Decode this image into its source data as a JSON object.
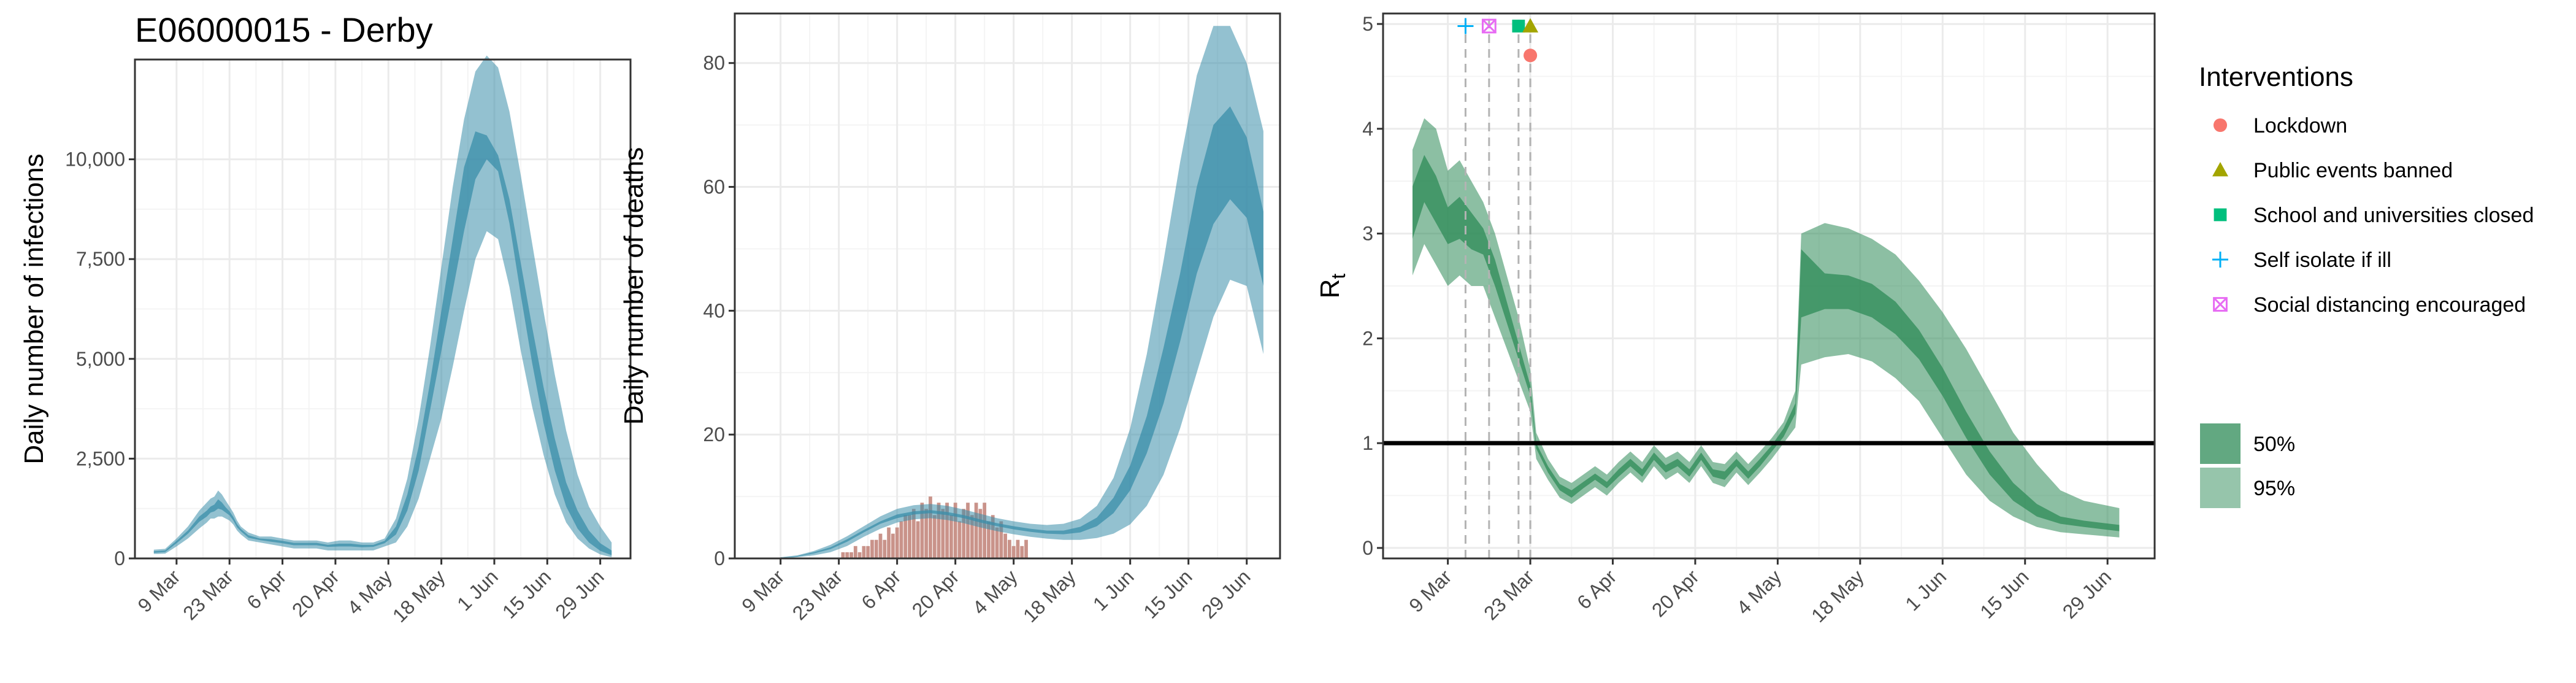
{
  "figure_title": "E06000015 - Derby",
  "colors": {
    "infection_band": "#3a8eaa",
    "death_band": "#3a8eaa",
    "rt_band": "#2e8b57",
    "observed_deaths": "#c9938a",
    "grid_major": "#ebebeb",
    "grid_minor": "#f4f4f4",
    "panel_border": "#333333",
    "lockdown": "#f8766d",
    "public_events": "#a3a500",
    "schools": "#00bf7d",
    "self_isolate": "#00b0f6",
    "social_distancing": "#e76bf3"
  },
  "date_ticks": [
    "9 Mar",
    "23 Mar",
    "6 Apr",
    "20 Apr",
    "4 May",
    "18 May",
    "1 Jun",
    "15 Jun",
    "29 Jun"
  ],
  "legend": {
    "interventions_title": "Interventions",
    "interventions": [
      {
        "label": "Lockdown",
        "icon": "circle-icon",
        "color": "#f8766d"
      },
      {
        "label": "Public events banned",
        "icon": "triangle-icon",
        "color": "#a3a500"
      },
      {
        "label": "School and universities closed",
        "icon": "square-icon",
        "color": "#00bf7d"
      },
      {
        "label": "Self isolate if ill",
        "icon": "plus-icon",
        "color": "#00b0f6"
      },
      {
        "label": "Social distancing encouraged",
        "icon": "boxed-cross-icon",
        "color": "#e76bf3"
      }
    ],
    "ci_levels": [
      {
        "label": "50%"
      },
      {
        "label": "95%"
      }
    ]
  },
  "chart_data": [
    {
      "type": "area",
      "ylabel": "Daily number of infections",
      "xlabel": "",
      "ylim": [
        0,
        12500
      ],
      "yticks": [
        0,
        2500,
        5000,
        7500,
        10000
      ],
      "ytick_labels": [
        "0",
        "2,500",
        "5,000",
        "7,500",
        "10,000"
      ],
      "xlim": [
        "2020-02-27",
        "2020-07-07"
      ],
      "xticks": [
        "2020-03-09",
        "2020-03-23",
        "2020-04-06",
        "2020-04-20",
        "2020-05-04",
        "2020-05-18",
        "2020-06-01",
        "2020-06-15",
        "2020-06-29"
      ],
      "grid": true,
      "dates": [
        "2020-03-03",
        "2020-03-06",
        "2020-03-09",
        "2020-03-12",
        "2020-03-15",
        "2020-03-17",
        "2020-03-18",
        "2020-03-19",
        "2020-03-20",
        "2020-03-21",
        "2020-03-22",
        "2020-03-23",
        "2020-03-24",
        "2020-03-25",
        "2020-03-26",
        "2020-03-28",
        "2020-03-31",
        "2020-04-03",
        "2020-04-06",
        "2020-04-09",
        "2020-04-12",
        "2020-04-15",
        "2020-04-18",
        "2020-04-21",
        "2020-04-24",
        "2020-04-27",
        "2020-04-30",
        "2020-05-03",
        "2020-05-06",
        "2020-05-09",
        "2020-05-12",
        "2020-05-15",
        "2020-05-18",
        "2020-05-21",
        "2020-05-24",
        "2020-05-27",
        "2020-05-30",
        "2020-06-02",
        "2020-06-05",
        "2020-06-08",
        "2020-06-11",
        "2020-06-14",
        "2020-06-17",
        "2020-06-20",
        "2020-06-23",
        "2020-06-26",
        "2020-06-29",
        "2020-07-02"
      ],
      "bands": [
        {
          "level": "95%",
          "lower": [
            110,
            120,
            300,
            500,
            750,
            900,
            1000,
            1000,
            1050,
            1050,
            1000,
            950,
            850,
            700,
            600,
            450,
            400,
            350,
            300,
            250,
            250,
            250,
            200,
            200,
            200,
            200,
            200,
            300,
            400,
            800,
            1500,
            2500,
            3500,
            4800,
            6200,
            7500,
            8200,
            8000,
            6800,
            5200,
            3800,
            2600,
            1600,
            900,
            500,
            250,
            100,
            30
          ],
          "upper": [
            220,
            240,
            500,
            800,
            1200,
            1400,
            1500,
            1550,
            1700,
            1600,
            1450,
            1300,
            1150,
            950,
            800,
            650,
            550,
            550,
            500,
            450,
            450,
            450,
            400,
            450,
            450,
            400,
            400,
            500,
            1000,
            2000,
            3500,
            5300,
            7300,
            9300,
            11000,
            12200,
            12600,
            12300,
            11200,
            9600,
            7900,
            6200,
            4600,
            3200,
            2100,
            1300,
            800,
            400
          ]
        },
        {
          "level": "50%",
          "lower": [
            140,
            160,
            380,
            620,
            920,
            1050,
            1150,
            1180,
            1250,
            1220,
            1150,
            1080,
            950,
            780,
            680,
            520,
            460,
            420,
            380,
            330,
            330,
            330,
            290,
            300,
            300,
            280,
            290,
            380,
            600,
            1200,
            2200,
            3700,
            5200,
            6700,
            8200,
            9500,
            10000,
            9700,
            8400,
            6600,
            4900,
            3400,
            2200,
            1300,
            750,
            400,
            190,
            80
          ],
          "upper": [
            180,
            200,
            440,
            700,
            1050,
            1200,
            1300,
            1350,
            1480,
            1400,
            1280,
            1180,
            1040,
            860,
            740,
            580,
            500,
            480,
            440,
            390,
            390,
            390,
            340,
            370,
            370,
            340,
            340,
            440,
            800,
            1600,
            2800,
            4400,
            6200,
            8000,
            9800,
            10700,
            10600,
            10100,
            9000,
            7400,
            5800,
            4300,
            3000,
            1900,
            1200,
            700,
            380,
            200
          ]
        }
      ]
    },
    {
      "type": "area",
      "ylabel": "Daily number of deaths",
      "xlabel": "",
      "ylim": [
        0,
        88
      ],
      "yticks": [
        0,
        20,
        40,
        60,
        80
      ],
      "ytick_labels": [
        "0",
        "20",
        "40",
        "60",
        "80"
      ],
      "xlim": [
        "2020-02-27",
        "2020-07-07"
      ],
      "xticks": [
        "2020-03-09",
        "2020-03-23",
        "2020-04-06",
        "2020-04-20",
        "2020-05-04",
        "2020-05-18",
        "2020-06-01",
        "2020-06-15",
        "2020-06-29"
      ],
      "grid": true,
      "dates": [
        "2020-03-09",
        "2020-03-13",
        "2020-03-17",
        "2020-03-21",
        "2020-03-25",
        "2020-03-29",
        "2020-04-02",
        "2020-04-06",
        "2020-04-10",
        "2020-04-14",
        "2020-04-18",
        "2020-04-22",
        "2020-04-26",
        "2020-04-30",
        "2020-05-04",
        "2020-05-08",
        "2020-05-12",
        "2020-05-16",
        "2020-05-20",
        "2020-05-24",
        "2020-05-28",
        "2020-06-01",
        "2020-06-05",
        "2020-06-09",
        "2020-06-13",
        "2020-06-17",
        "2020-06-21",
        "2020-06-25",
        "2020-06-29",
        "2020-07-03"
      ],
      "bands": [
        {
          "level": "95%",
          "lower": [
            0,
            0.2,
            0.5,
            1.0,
            2.0,
            3.5,
            4.8,
            5.8,
            6.3,
            6.5,
            6.2,
            5.7,
            5.0,
            4.4,
            3.9,
            3.5,
            3.2,
            3.0,
            3.0,
            3.3,
            4.0,
            5.5,
            8.5,
            13.5,
            21.0,
            30.0,
            39.0,
            45.0,
            44.0,
            33.0
          ],
          "upper": [
            0.2,
            0.5,
            1.2,
            2.2,
            3.6,
            5.2,
            6.8,
            8.0,
            8.6,
            8.8,
            8.5,
            7.9,
            7.2,
            6.5,
            6.0,
            5.6,
            5.4,
            5.6,
            6.4,
            8.5,
            13.0,
            21.0,
            33.0,
            48.0,
            64.0,
            78.0,
            86.0,
            86.0,
            80.0,
            69.0
          ]
        },
        {
          "level": "50%",
          "lower": [
            0.1,
            0.3,
            0.8,
            1.5,
            2.7,
            4.2,
            5.6,
            6.5,
            7.1,
            7.3,
            7.0,
            6.5,
            5.8,
            5.2,
            4.7,
            4.3,
            4.0,
            3.9,
            4.2,
            5.2,
            7.3,
            11.0,
            17.0,
            25.0,
            35.0,
            46.0,
            54.0,
            58.0,
            55.0,
            44.0
          ],
          "upper": [
            0.1,
            0.4,
            1.0,
            1.8,
            3.1,
            4.6,
            6.0,
            7.1,
            7.6,
            7.8,
            7.5,
            7.0,
            6.3,
            5.7,
            5.2,
            4.8,
            4.5,
            4.5,
            5.1,
            6.6,
            9.8,
            15.0,
            23.0,
            34.0,
            46.0,
            60.0,
            70.0,
            73.0,
            68.0,
            56.0
          ]
        }
      ],
      "observed_dates": [
        "2020-03-24",
        "2020-03-25",
        "2020-03-26",
        "2020-03-27",
        "2020-03-28",
        "2020-03-29",
        "2020-03-30",
        "2020-03-31",
        "2020-04-01",
        "2020-04-02",
        "2020-04-03",
        "2020-04-04",
        "2020-04-05",
        "2020-04-06",
        "2020-04-07",
        "2020-04-08",
        "2020-04-09",
        "2020-04-10",
        "2020-04-11",
        "2020-04-12",
        "2020-04-13",
        "2020-04-14",
        "2020-04-15",
        "2020-04-16",
        "2020-04-17",
        "2020-04-18",
        "2020-04-19",
        "2020-04-20",
        "2020-04-21",
        "2020-04-22",
        "2020-04-23",
        "2020-04-24",
        "2020-04-25",
        "2020-04-26",
        "2020-04-27",
        "2020-04-28",
        "2020-04-29",
        "2020-04-30",
        "2020-05-01",
        "2020-05-02",
        "2020-05-03",
        "2020-05-04",
        "2020-05-05",
        "2020-05-06",
        "2020-05-07"
      ],
      "observed_deaths": [
        1,
        1,
        1,
        2,
        1,
        2,
        2,
        3,
        3,
        4,
        3,
        5,
        4,
        5,
        6,
        7,
        7,
        8,
        6,
        9,
        8,
        10,
        7,
        9,
        8,
        9,
        7,
        9,
        6,
        8,
        9,
        7,
        9,
        8,
        9,
        6,
        7,
        5,
        6,
        4,
        3,
        2,
        3,
        2,
        3
      ]
    },
    {
      "type": "area",
      "ylabel": "R",
      "ylabel_subscript": "t",
      "xlabel": "",
      "ylim": [
        -0.1,
        5.1
      ],
      "yticks": [
        0,
        1,
        2,
        3,
        4,
        5
      ],
      "ytick_labels": [
        "0",
        "1",
        "2",
        "3",
        "4",
        "5"
      ],
      "xlim": [
        "2020-02-27",
        "2020-07-07"
      ],
      "xticks": [
        "2020-03-09",
        "2020-03-23",
        "2020-04-06",
        "2020-04-20",
        "2020-05-04",
        "2020-05-18",
        "2020-06-01",
        "2020-06-15",
        "2020-06-29"
      ],
      "grid": true,
      "reference_line": 1,
      "dates": [
        "2020-03-03",
        "2020-03-05",
        "2020-03-07",
        "2020-03-09",
        "2020-03-11",
        "2020-03-13",
        "2020-03-15",
        "2020-03-17",
        "2020-03-19",
        "2020-03-21",
        "2020-03-23",
        "2020-03-24",
        "2020-03-26",
        "2020-03-28",
        "2020-03-30",
        "2020-04-01",
        "2020-04-03",
        "2020-04-05",
        "2020-04-07",
        "2020-04-09",
        "2020-04-11",
        "2020-04-13",
        "2020-04-15",
        "2020-04-17",
        "2020-04-19",
        "2020-04-21",
        "2020-04-23",
        "2020-04-25",
        "2020-04-27",
        "2020-04-29",
        "2020-05-01",
        "2020-05-03",
        "2020-05-05",
        "2020-05-07",
        "2020-05-08",
        "2020-05-12",
        "2020-05-16",
        "2020-05-20",
        "2020-05-24",
        "2020-05-28",
        "2020-06-01",
        "2020-06-05",
        "2020-06-09",
        "2020-06-13",
        "2020-06-17",
        "2020-06-21",
        "2020-06-25",
        "2020-07-01"
      ],
      "bands": [
        {
          "level": "95%",
          "lower": [
            2.6,
            2.9,
            2.7,
            2.5,
            2.6,
            2.5,
            2.5,
            2.2,
            1.9,
            1.6,
            1.3,
            0.85,
            0.65,
            0.48,
            0.42,
            0.5,
            0.58,
            0.5,
            0.62,
            0.72,
            0.62,
            0.78,
            0.65,
            0.72,
            0.62,
            0.78,
            0.62,
            0.58,
            0.72,
            0.6,
            0.72,
            0.85,
            1.0,
            1.15,
            1.75,
            1.82,
            1.85,
            1.78,
            1.62,
            1.4,
            1.05,
            0.7,
            0.45,
            0.3,
            0.2,
            0.15,
            0.13,
            0.1
          ],
          "upper": [
            3.8,
            4.1,
            4.0,
            3.6,
            3.7,
            3.5,
            3.3,
            3.0,
            2.6,
            2.2,
            1.7,
            1.1,
            0.85,
            0.68,
            0.62,
            0.7,
            0.78,
            0.7,
            0.82,
            0.92,
            0.82,
            0.98,
            0.86,
            0.92,
            0.82,
            0.98,
            0.82,
            0.8,
            0.92,
            0.8,
            0.92,
            1.05,
            1.2,
            1.5,
            3.0,
            3.1,
            3.05,
            2.95,
            2.8,
            2.55,
            2.25,
            1.9,
            1.5,
            1.1,
            0.8,
            0.55,
            0.45,
            0.38
          ]
        },
        {
          "level": "50%",
          "lower": [
            2.95,
            3.3,
            3.1,
            2.9,
            2.95,
            2.85,
            2.8,
            2.5,
            2.15,
            1.8,
            1.45,
            0.95,
            0.72,
            0.55,
            0.48,
            0.57,
            0.65,
            0.57,
            0.68,
            0.78,
            0.68,
            0.84,
            0.72,
            0.78,
            0.68,
            0.84,
            0.68,
            0.65,
            0.78,
            0.66,
            0.78,
            0.92,
            1.06,
            1.28,
            2.2,
            2.28,
            2.28,
            2.2,
            2.04,
            1.8,
            1.45,
            1.05,
            0.7,
            0.45,
            0.3,
            0.23,
            0.2,
            0.16
          ],
          "upper": [
            3.45,
            3.75,
            3.55,
            3.25,
            3.35,
            3.2,
            3.05,
            2.75,
            2.35,
            1.95,
            1.55,
            1.0,
            0.78,
            0.61,
            0.55,
            0.63,
            0.71,
            0.63,
            0.75,
            0.85,
            0.75,
            0.91,
            0.79,
            0.85,
            0.75,
            0.91,
            0.75,
            0.73,
            0.85,
            0.73,
            0.85,
            0.98,
            1.14,
            1.38,
            2.85,
            2.62,
            2.6,
            2.52,
            2.35,
            2.08,
            1.72,
            1.3,
            0.92,
            0.62,
            0.42,
            0.3,
            0.26,
            0.22
          ]
        }
      ],
      "interventions": [
        {
          "label": "Self isolate if ill",
          "date": "2020-03-12",
          "y": 4.98
        },
        {
          "label": "Social distancing encouraged",
          "date": "2020-03-16",
          "y": 4.98
        },
        {
          "label": "School and universities closed",
          "date": "2020-03-21",
          "y": 4.98
        },
        {
          "label": "Public events banned",
          "date": "2020-03-23",
          "y": 4.98
        },
        {
          "label": "Lockdown",
          "date": "2020-03-23",
          "y": 4.7
        }
      ]
    }
  ]
}
